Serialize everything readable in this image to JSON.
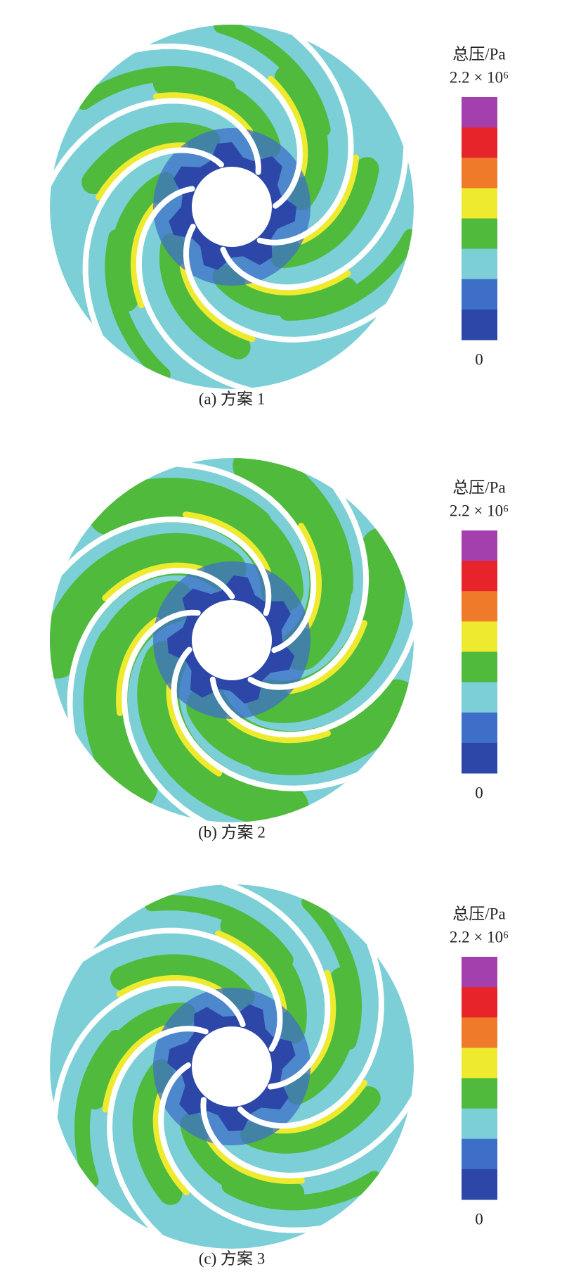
{
  "colorbar": {
    "colors": [
      "#a43fae",
      "#e8242b",
      "#ef7a2a",
      "#eeea2e",
      "#4fba3c",
      "#7ccfd6",
      "#3d6fc8",
      "#2c47a8"
    ]
  },
  "panels": [
    {
      "caption": "(a) 方案 1",
      "legend": {
        "title": "总压/Pa",
        "max_label": "2.2 × 10⁶",
        "min_label": "0"
      }
    },
    {
      "caption": "(b) 方案 2",
      "legend": {
        "title": "总压/Pa",
        "max_label": "2.2 × 10⁶",
        "min_label": "0"
      }
    },
    {
      "caption": "(c) 方案 3",
      "legend": {
        "title": "总压/Pa",
        "max_label": "2.2 × 10⁶",
        "min_label": "0"
      }
    }
  ]
}
